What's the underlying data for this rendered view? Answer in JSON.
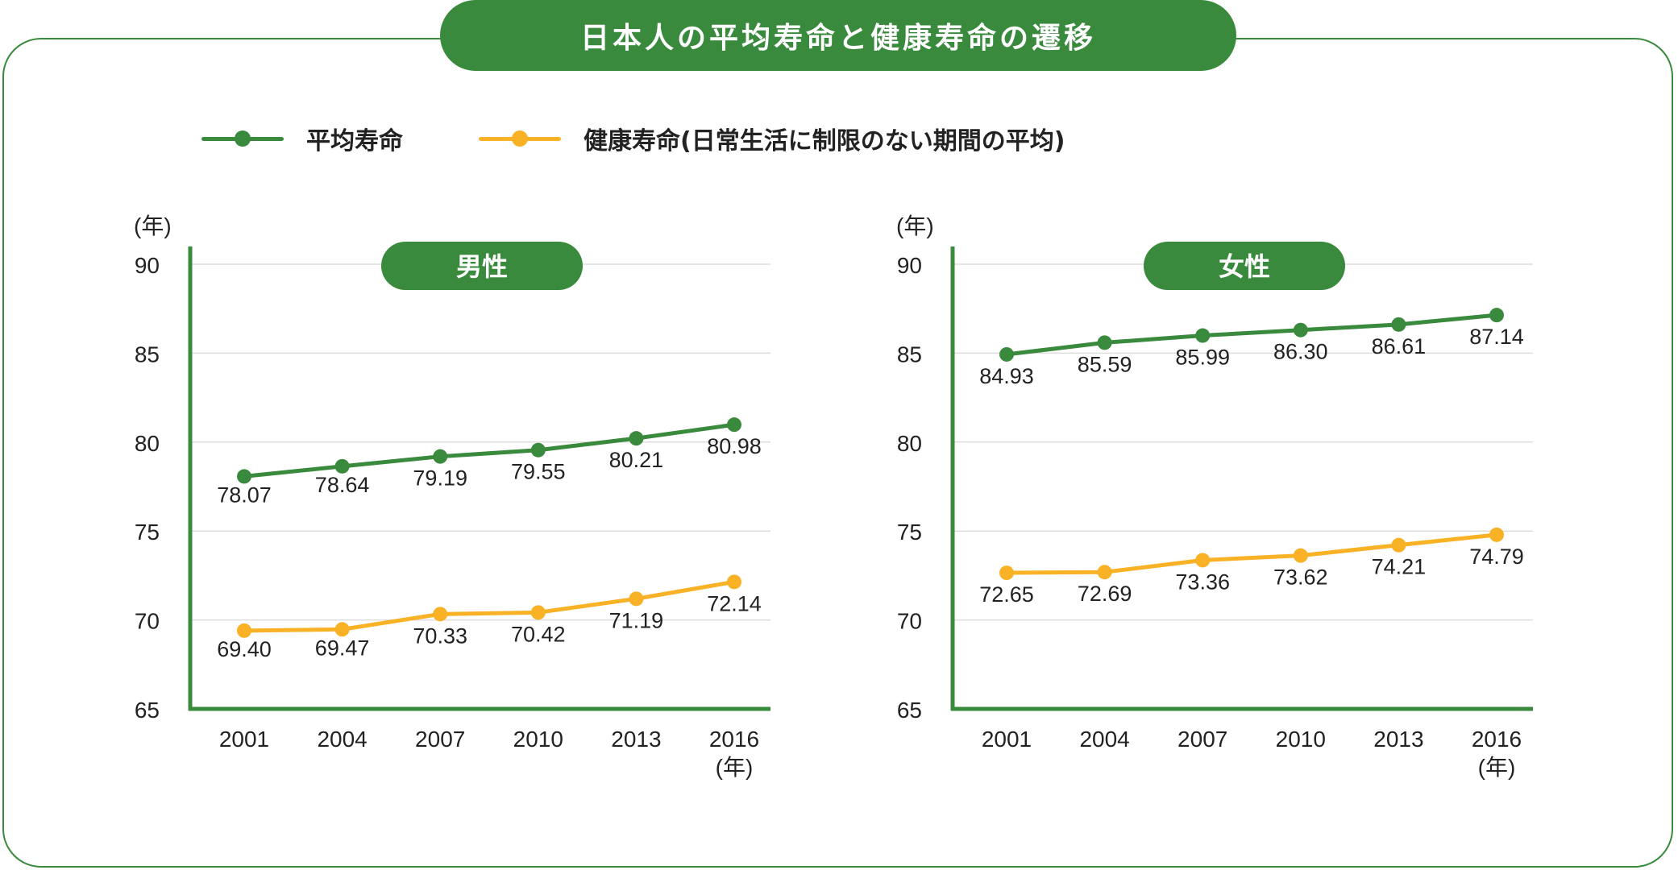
{
  "title": "日本人の平均寿命と健康寿命の遷移",
  "colors": {
    "green": "#3a8a3e",
    "orange": "#f9b125",
    "grid": "#dddddd"
  },
  "legend": [
    {
      "label": "平均寿命",
      "color": "#3a8a3e"
    },
    {
      "label": "健康寿命(日常生活に制限のない期間の平均)",
      "color": "#f9b125"
    }
  ],
  "chart_data": [
    {
      "type": "line",
      "title": "男性",
      "ylabel": "(年)",
      "xlabel": "(年)",
      "categories": [
        "2001",
        "2004",
        "2007",
        "2010",
        "2013",
        "2016"
      ],
      "ylim": [
        65,
        90
      ],
      "yticks": [
        90,
        85,
        80,
        75,
        70,
        65
      ],
      "grid": true,
      "series": [
        {
          "name": "平均寿命",
          "color": "#3a8a3e",
          "values": [
            78.07,
            78.64,
            79.19,
            79.55,
            80.21,
            80.98
          ]
        },
        {
          "name": "健康寿命(日常生活に制限のない期間の平均)",
          "color": "#f9b125",
          "values": [
            69.4,
            69.47,
            70.33,
            70.42,
            71.19,
            72.14
          ]
        }
      ]
    },
    {
      "type": "line",
      "title": "女性",
      "ylabel": "(年)",
      "xlabel": "(年)",
      "categories": [
        "2001",
        "2004",
        "2007",
        "2010",
        "2013",
        "2016"
      ],
      "ylim": [
        65,
        90
      ],
      "yticks": [
        90,
        85,
        80,
        75,
        70,
        65
      ],
      "grid": true,
      "series": [
        {
          "name": "平均寿命",
          "color": "#3a8a3e",
          "values": [
            84.93,
            85.59,
            85.99,
            86.3,
            86.61,
            87.14
          ]
        },
        {
          "name": "健康寿命(日常生活に制限のない期間の平均)",
          "color": "#f9b125",
          "values": [
            72.65,
            72.69,
            73.36,
            73.62,
            74.21,
            74.79
          ]
        }
      ]
    }
  ]
}
